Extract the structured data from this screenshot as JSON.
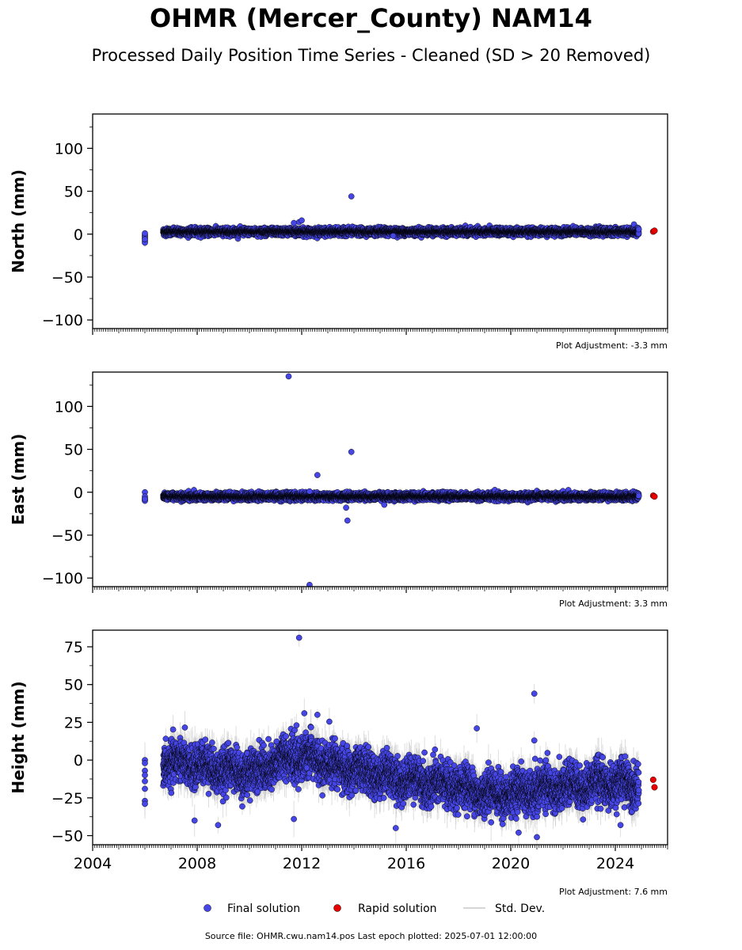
{
  "title": "OHMR (Mercer_County) NAM14",
  "subtitle": "Processed Daily Position Time Series - Cleaned (SD > 20 Removed)",
  "footer": "Source file: OHMR.cwu.nam14.pos  Last epoch plotted: 2025-07-01 12:00:00",
  "colors": {
    "final": "#4646e6",
    "rapid": "#e60000",
    "std_dev": "#c8c8c8"
  },
  "chart_data": [
    {
      "type": "scatter",
      "ylabel": "North (mm)",
      "xlim": [
        2004,
        2026
      ],
      "ylim": [
        -110,
        140
      ],
      "yticks": [
        100,
        50,
        0,
        -50,
        -100
      ],
      "ytick_labels": [
        "100",
        "50",
        "0",
        "−50",
        "−100"
      ],
      "adjustment": "Plot Adjustment: -3.3 mm",
      "show_x_labels": false,
      "main": {
        "start": 2006.7,
        "end": 2024.9,
        "center": 2.8,
        "spread": 2.0,
        "err": 4
      },
      "start_cluster": {
        "x": 2006.0,
        "y": [
          -1,
          -3,
          -5,
          -8,
          -10,
          -2,
          1,
          -6
        ]
      },
      "outliers": [
        {
          "x": 2011.7,
          "y": 13
        },
        {
          "x": 2011.9,
          "y": 14
        },
        {
          "x": 2012.0,
          "y": 16
        },
        {
          "x": 2013.9,
          "y": 44
        },
        {
          "x": 2015.5,
          "y": -2
        }
      ],
      "rapid": [
        {
          "x": 2025.45,
          "y": 3
        },
        {
          "x": 2025.5,
          "y": 4
        }
      ]
    },
    {
      "type": "scatter",
      "ylabel": "East (mm)",
      "xlim": [
        2004,
        2026
      ],
      "ylim": [
        -110,
        140
      ],
      "yticks": [
        100,
        50,
        0,
        -50,
        -100
      ],
      "ytick_labels": [
        "100",
        "50",
        "0",
        "−50",
        "−100"
      ],
      "adjustment": "Plot Adjustment: 3.3 mm",
      "show_x_labels": false,
      "main": {
        "start": 2006.7,
        "end": 2024.9,
        "center": -5,
        "spread": 2.0,
        "err": 4
      },
      "start_cluster": {
        "x": 2006.0,
        "y": [
          0,
          -7,
          -9,
          -10,
          -5,
          -8
        ]
      },
      "outliers": [
        {
          "x": 2011.5,
          "y": 135
        },
        {
          "x": 2012.3,
          "y": -108
        },
        {
          "x": 2012.3,
          "y": 1
        },
        {
          "x": 2012.6,
          "y": 20
        },
        {
          "x": 2013.7,
          "y": -18
        },
        {
          "x": 2013.75,
          "y": -33
        },
        {
          "x": 2013.9,
          "y": 47
        }
      ],
      "rapid": [
        {
          "x": 2025.45,
          "y": -4
        },
        {
          "x": 2025.5,
          "y": -5
        }
      ]
    },
    {
      "type": "scatter",
      "ylabel": "Height (mm)",
      "xlim": [
        2004,
        2026
      ],
      "ylim": [
        -56,
        86
      ],
      "yticks": [
        75,
        50,
        25,
        0,
        -25,
        -50
      ],
      "ytick_labels": [
        "75",
        "50",
        "25",
        "0",
        "−25",
        "−50"
      ],
      "xticks": [
        2004,
        2008,
        2012,
        2016,
        2020,
        2024
      ],
      "xtick_labels": [
        "2004",
        "2008",
        "2012",
        "2016",
        "2020",
        "2024"
      ],
      "adjustment": "Plot Adjustment: 7.6 mm",
      "show_x_labels": true,
      "main": {
        "start": 2006.7,
        "end": 2024.9,
        "center": null,
        "spread": 6.5,
        "err": 9,
        "trend": [
          [
            2006.7,
            -1
          ],
          [
            2008.0,
            -3
          ],
          [
            2009.5,
            -8
          ],
          [
            2010.5,
            -7
          ],
          [
            2011.5,
            2
          ],
          [
            2012.5,
            1
          ],
          [
            2013.5,
            -5
          ],
          [
            2014.5,
            -8
          ],
          [
            2015.5,
            -11
          ],
          [
            2016.5,
            -14
          ],
          [
            2017.5,
            -17
          ],
          [
            2018.5,
            -19
          ],
          [
            2019.5,
            -23
          ],
          [
            2020.5,
            -21
          ],
          [
            2021.5,
            -19
          ],
          [
            2022.5,
            -17
          ],
          [
            2023.5,
            -15
          ],
          [
            2024.9,
            -16
          ]
        ]
      },
      "start_cluster": {
        "x": 2006.0,
        "y": [
          0,
          -7,
          -14,
          -19,
          -27,
          -29,
          -2,
          -10
        ]
      },
      "outliers": [
        {
          "x": 2011.9,
          "y": 81
        },
        {
          "x": 2012.1,
          "y": 31
        },
        {
          "x": 2012.6,
          "y": 30
        },
        {
          "x": 2011.8,
          "y": 23
        },
        {
          "x": 2011.7,
          "y": -39
        },
        {
          "x": 2007.9,
          "y": -40
        },
        {
          "x": 2008.8,
          "y": -43
        },
        {
          "x": 2015.6,
          "y": -45
        },
        {
          "x": 2018.7,
          "y": 21
        },
        {
          "x": 2020.9,
          "y": 44
        },
        {
          "x": 2020.9,
          "y": 13
        },
        {
          "x": 2021.0,
          "y": -51
        },
        {
          "x": 2020.3,
          "y": -48
        },
        {
          "x": 2024.2,
          "y": -43
        },
        {
          "x": 2016.7,
          "y": 5
        },
        {
          "x": 2017.1,
          "y": 7
        }
      ],
      "rapid": [
        {
          "x": 2025.45,
          "y": -13
        },
        {
          "x": 2025.5,
          "y": -18
        }
      ]
    }
  ],
  "legend": {
    "final": "Final solution",
    "rapid": "Rapid solution",
    "std": "Std. Dev."
  }
}
